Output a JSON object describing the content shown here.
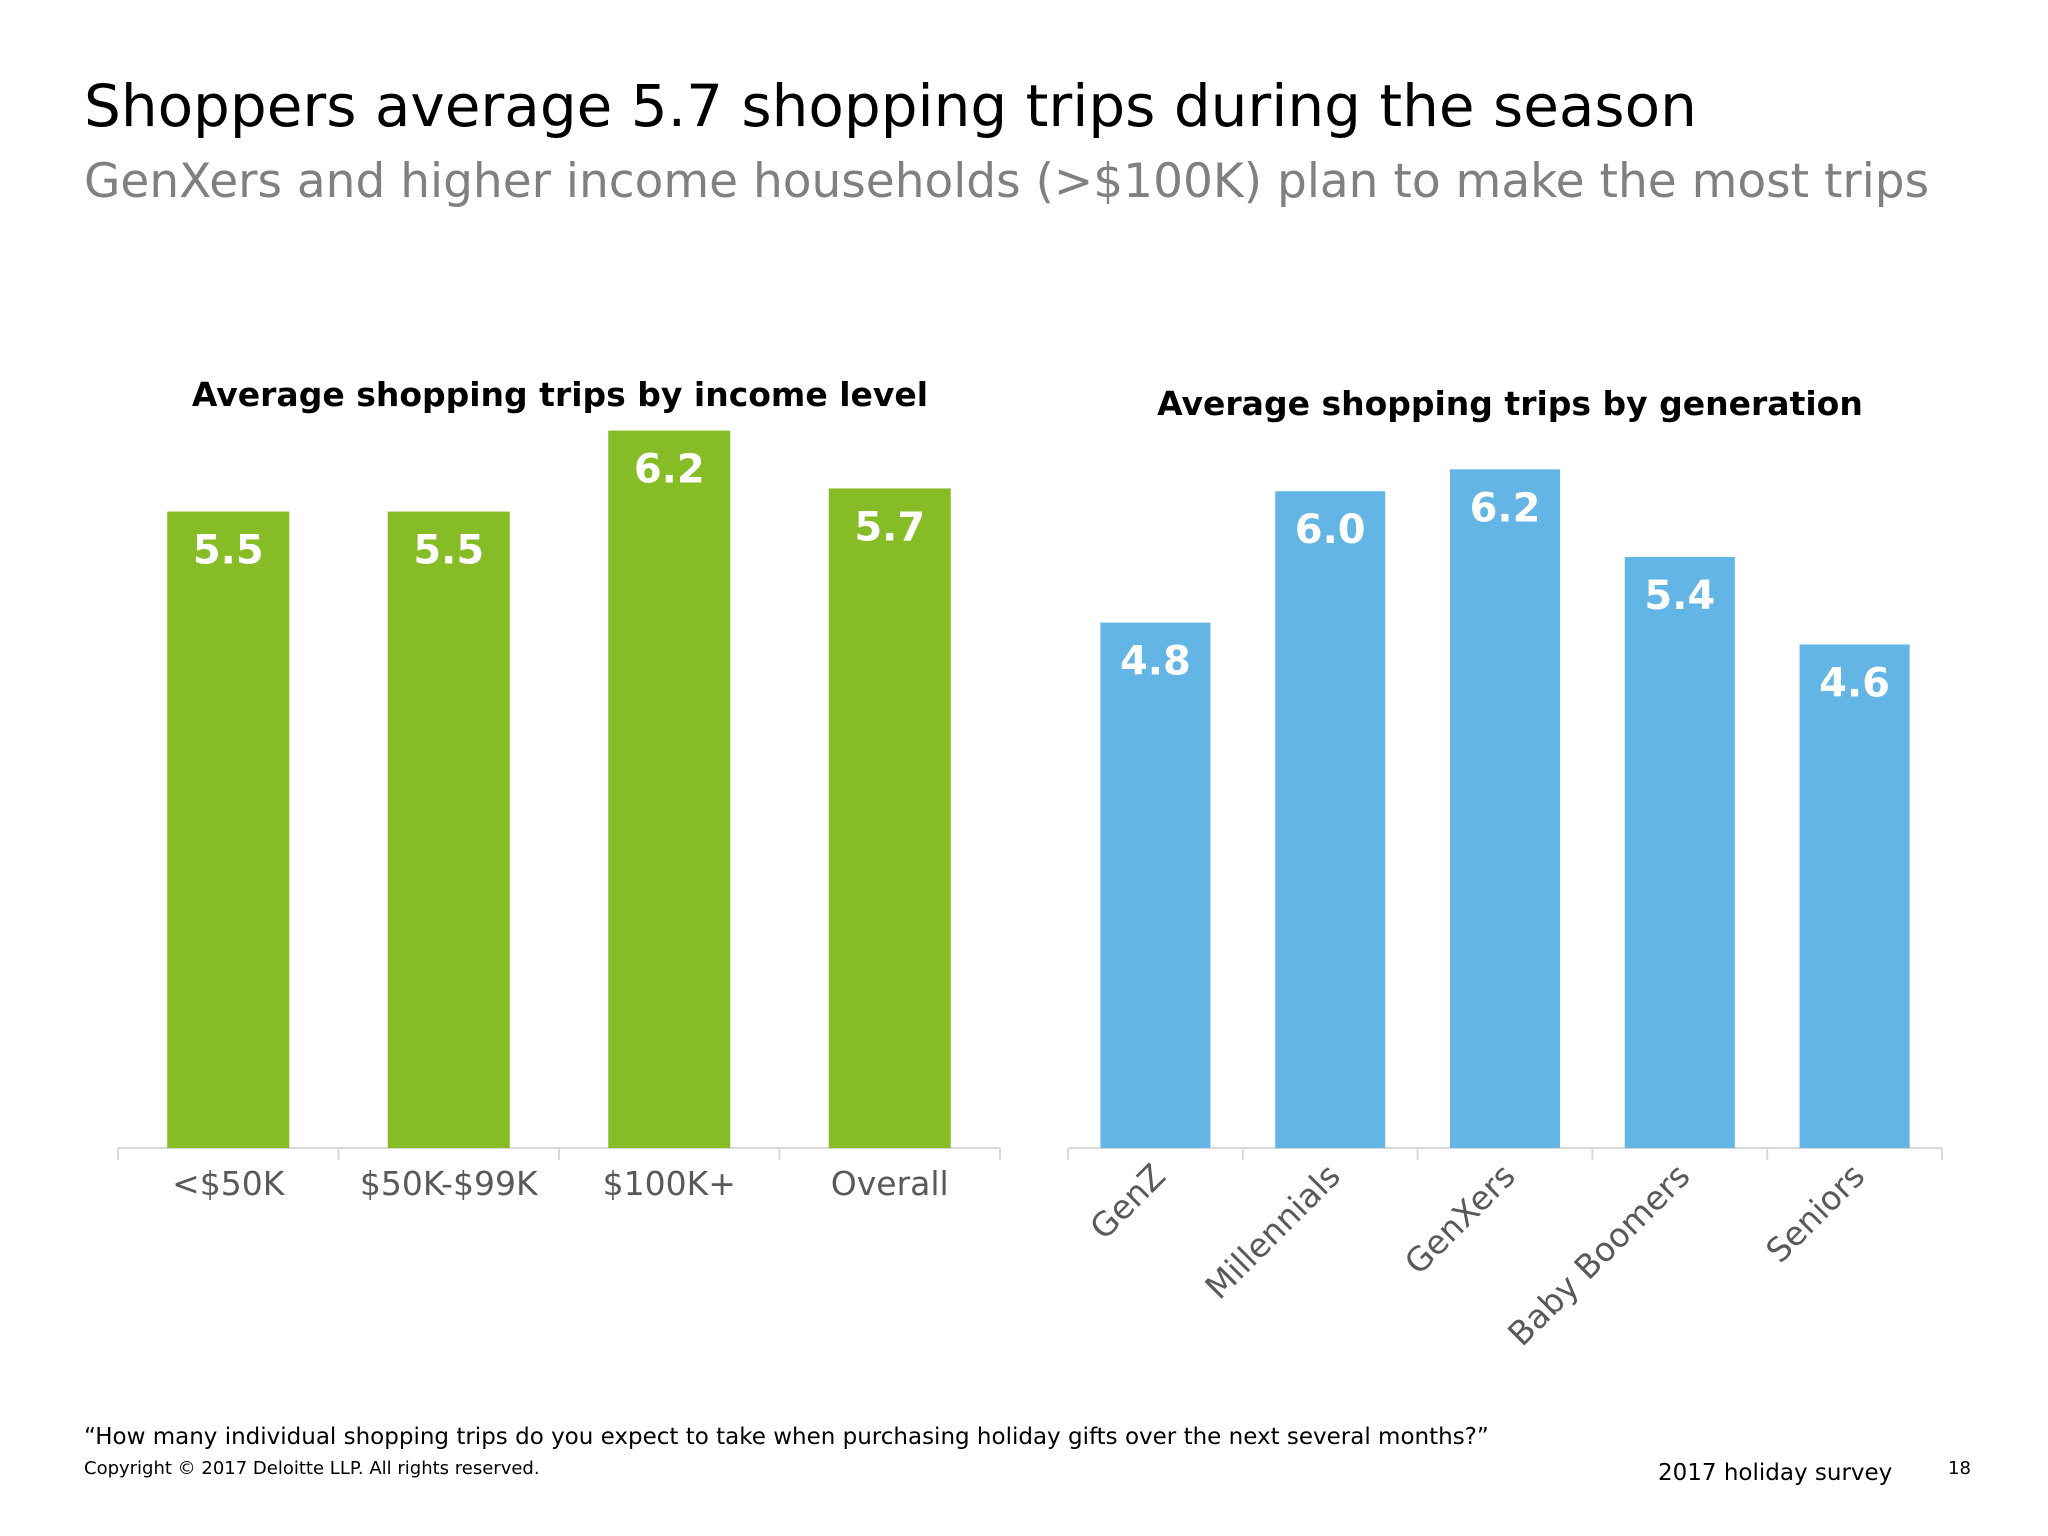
{
  "slide": {
    "title": "Shoppers average 5.7 shopping trips during the season",
    "subtitle": "GenXers and higher income households (>$100K) plan to make the most trips",
    "footnote": "“How many individual shopping trips do you expect to take when purchasing holiday gifts over the next several months?”",
    "copyright": "Copyright © 2017 Deloitte LLP. All rights reserved.",
    "survey_label": "2017 holiday survey",
    "page_number": "18"
  },
  "chart_data": [
    {
      "type": "bar",
      "title": "Average shopping trips by income level",
      "categories": [
        "<$50K",
        "$50K-$99K",
        "$100K+",
        "Overall"
      ],
      "values": [
        5.5,
        5.5,
        6.2,
        5.7
      ],
      "value_labels": [
        "5.5",
        "5.5",
        "6.2",
        "5.7"
      ],
      "color": "#86BC25",
      "ylim": [
        0,
        7.0
      ],
      "grid": false,
      "tick_label_rotation": 0
    },
    {
      "type": "bar",
      "title": "Average shopping trips by generation",
      "categories": [
        "GenZ",
        "Millennials",
        "GenXers",
        "Baby Boomers",
        "Seniors"
      ],
      "values": [
        4.8,
        6.0,
        6.2,
        5.4,
        4.6
      ],
      "value_labels": [
        "4.8",
        "6.0",
        "6.2",
        "5.4",
        "4.6"
      ],
      "color": "#62B5E5",
      "ylim": [
        0,
        7.4
      ],
      "grid": false,
      "tick_label_rotation": -45
    }
  ]
}
